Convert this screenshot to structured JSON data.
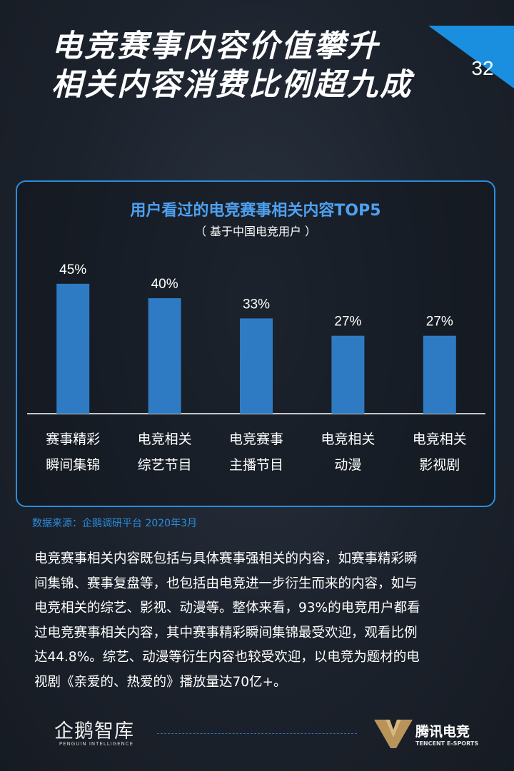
{
  "page": {
    "title_line1": "电竞赛事内容价值攀升",
    "title_line2": "相关内容消费比例超九成",
    "page_number": "32",
    "accent_color": "#1a8fe0"
  },
  "chart_data": {
    "type": "bar",
    "title": "用户看过的电竞赛事相关内容TOP5",
    "subtitle": "（ 基于中国电竞用户 ）",
    "categories": [
      [
        "赛事精彩",
        "瞬间集锦"
      ],
      [
        "电竞相关",
        "综艺节目"
      ],
      [
        "电竞赛事",
        "主播节目"
      ],
      [
        "电竞相关",
        "动漫"
      ],
      [
        "电竞相关",
        "影视剧"
      ]
    ],
    "values": [
      45,
      40,
      33,
      27,
      27
    ],
    "value_labels": [
      "45%",
      "40%",
      "33%",
      "27%",
      "27%"
    ],
    "ylim": [
      0,
      50
    ],
    "bar_color": "#2e7bc4",
    "grid": false,
    "legend": "none"
  },
  "source": "数据来源：企鹅调研平台  2020年3月",
  "body_lines": [
    "电竞赛事相关内容既包括与具体赛事强相关的内容，如赛事精彩瞬",
    "间集锦、赛事复盘等，也包括由电竞进一步衍生而来的内容，如与",
    "电竞相关的综艺、影视、动漫等。整体来看，93%的电竞用户都看",
    "过电竞赛事相关内容，其中赛事精彩瞬间集锦最受欢迎，观看比例",
    "达44.8%。综艺、动漫等衍生内容也较受欢迎，以电竞为题材的电",
    "视剧《亲爱的、热爱的》播放量达70亿+。"
  ],
  "footer": {
    "left_logo_text": "企鹅智库",
    "left_logo_sub": "PENGUIN INTELLIGENCE",
    "right_logo_text": "腾讯电竞",
    "right_logo_sub": "TENCENT E-SPORTS"
  }
}
